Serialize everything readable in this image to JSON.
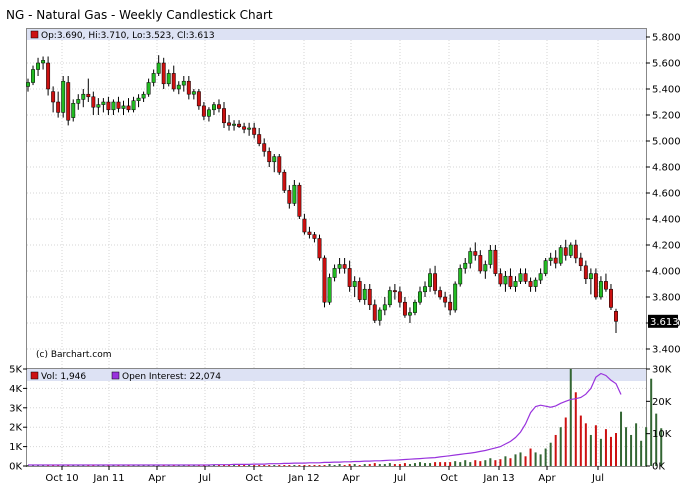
{
  "title": "NG - Natural Gas - Weekly Candlestick Chart",
  "price_legend": "Op:3.690, Hi:3.710, Lo:3.523, Cl:3.613",
  "copyright": "(c) Barchart.com",
  "last_price_label": "3.613",
  "volume_legend": "Vol: 1,946",
  "oi_legend": "Open Interest: 22,074",
  "colors": {
    "up": "#22bb22",
    "down": "#cc1111",
    "oi_line": "#9933dd",
    "legend_bar": "#dde2f4",
    "grid": "#d6d6d6",
    "vol_dark": "#336633"
  },
  "chart_data": [
    {
      "type": "candlestick",
      "name": "price",
      "y_ticks": [
        "3.400",
        "3.600",
        "3.800",
        "4.000",
        "4.200",
        "4.400",
        "4.600",
        "4.800",
        "5.000",
        "5.200",
        "5.400",
        "5.600",
        "5.800"
      ],
      "ylim": [
        3.32,
        5.84
      ],
      "grid": true,
      "x_ticks": [
        "Oct 10",
        "Jan 11",
        "Apr",
        "Jul",
        "Oct",
        "Jan 12",
        "Apr",
        "Jul",
        "Oct",
        "Jan 13",
        "Apr",
        "Jul"
      ],
      "last": {
        "open": 3.69,
        "high": 3.71,
        "low": 3.523,
        "close": 3.613
      },
      "candles": [
        [
          5.42,
          5.48,
          5.38,
          5.45
        ],
        [
          5.45,
          5.58,
          5.43,
          5.55
        ],
        [
          5.55,
          5.64,
          5.5,
          5.6
        ],
        [
          5.6,
          5.65,
          5.55,
          5.62
        ],
        [
          5.6,
          5.65,
          5.35,
          5.4
        ],
        [
          5.38,
          5.42,
          5.22,
          5.3
        ],
        [
          5.3,
          5.38,
          5.18,
          5.22
        ],
        [
          5.22,
          5.5,
          5.18,
          5.46
        ],
        [
          5.45,
          5.5,
          5.12,
          5.16
        ],
        [
          5.18,
          5.32,
          5.15,
          5.29
        ],
        [
          5.29,
          5.36,
          5.24,
          5.32
        ],
        [
          5.32,
          5.4,
          5.26,
          5.36
        ],
        [
          5.36,
          5.48,
          5.3,
          5.34
        ],
        [
          5.34,
          5.38,
          5.2,
          5.26
        ],
        [
          5.26,
          5.33,
          5.2,
          5.28
        ],
        [
          5.28,
          5.33,
          5.22,
          5.3
        ],
        [
          5.3,
          5.34,
          5.2,
          5.24
        ],
        [
          5.24,
          5.32,
          5.2,
          5.3
        ],
        [
          5.3,
          5.34,
          5.22,
          5.25
        ],
        [
          5.25,
          5.31,
          5.2,
          5.27
        ],
        [
          5.27,
          5.33,
          5.22,
          5.24
        ],
        [
          5.24,
          5.34,
          5.22,
          5.31
        ],
        [
          5.31,
          5.36,
          5.26,
          5.33
        ],
        [
          5.33,
          5.38,
          5.3,
          5.36
        ],
        [
          5.36,
          5.48,
          5.34,
          5.45
        ],
        [
          5.45,
          5.55,
          5.42,
          5.52
        ],
        [
          5.52,
          5.66,
          5.5,
          5.6
        ],
        [
          5.6,
          5.64,
          5.4,
          5.44
        ],
        [
          5.44,
          5.55,
          5.42,
          5.52
        ],
        [
          5.52,
          5.58,
          5.38,
          5.4
        ],
        [
          5.4,
          5.46,
          5.36,
          5.43
        ],
        [
          5.43,
          5.5,
          5.38,
          5.46
        ],
        [
          5.46,
          5.5,
          5.32,
          5.36
        ],
        [
          5.36,
          5.4,
          5.32,
          5.38
        ],
        [
          5.38,
          5.4,
          5.24,
          5.27
        ],
        [
          5.27,
          5.3,
          5.16,
          5.19
        ],
        [
          5.19,
          5.26,
          5.15,
          5.24
        ],
        [
          5.24,
          5.3,
          5.2,
          5.28
        ],
        [
          5.28,
          5.32,
          5.22,
          5.25
        ],
        [
          5.25,
          5.3,
          5.1,
          5.14
        ],
        [
          5.14,
          5.2,
          5.08,
          5.12
        ],
        [
          5.12,
          5.16,
          5.08,
          5.13
        ],
        [
          5.13,
          5.16,
          5.1,
          5.11
        ],
        [
          5.11,
          5.14,
          5.06,
          5.09
        ],
        [
          5.09,
          5.14,
          5.04,
          5.1
        ],
        [
          5.1,
          5.14,
          5.02,
          5.05
        ],
        [
          5.05,
          5.1,
          4.96,
          4.98
        ],
        [
          4.98,
          5.02,
          4.88,
          4.92
        ],
        [
          4.92,
          4.95,
          4.8,
          4.84
        ],
        [
          4.84,
          4.9,
          4.76,
          4.88
        ],
        [
          4.88,
          4.9,
          4.74,
          4.76
        ],
        [
          4.76,
          4.78,
          4.6,
          4.62
        ],
        [
          4.62,
          4.66,
          4.48,
          4.52
        ],
        [
          4.52,
          4.7,
          4.5,
          4.66
        ],
        [
          4.66,
          4.68,
          4.4,
          4.42
        ],
        [
          4.4,
          4.44,
          4.28,
          4.3
        ],
        [
          4.3,
          4.34,
          4.25,
          4.28
        ],
        [
          4.28,
          4.3,
          4.22,
          4.25
        ],
        [
          4.25,
          4.28,
          4.08,
          4.1
        ],
        [
          4.1,
          4.12,
          3.72,
          3.76
        ],
        [
          3.76,
          3.98,
          3.74,
          3.95
        ],
        [
          3.95,
          4.05,
          3.92,
          4.02
        ],
        [
          4.02,
          4.1,
          3.98,
          4.05
        ],
        [
          4.05,
          4.1,
          3.98,
          4.02
        ],
        [
          4.02,
          4.08,
          3.84,
          3.88
        ],
        [
          3.88,
          3.96,
          3.8,
          3.92
        ],
        [
          3.92,
          3.95,
          3.76,
          3.78
        ],
        [
          3.78,
          3.9,
          3.74,
          3.86
        ],
        [
          3.86,
          3.9,
          3.7,
          3.74
        ],
        [
          3.74,
          3.78,
          3.6,
          3.62
        ],
        [
          3.62,
          3.72,
          3.58,
          3.7
        ],
        [
          3.7,
          3.8,
          3.66,
          3.74
        ],
        [
          3.74,
          3.88,
          3.72,
          3.85
        ],
        [
          3.85,
          3.9,
          3.78,
          3.84
        ],
        [
          3.84,
          3.88,
          3.72,
          3.76
        ],
        [
          3.76,
          3.8,
          3.64,
          3.66
        ],
        [
          3.66,
          3.72,
          3.6,
          3.68
        ],
        [
          3.68,
          3.78,
          3.66,
          3.76
        ],
        [
          3.76,
          3.88,
          3.74,
          3.84
        ],
        [
          3.84,
          3.92,
          3.8,
          3.88
        ],
        [
          3.88,
          4.02,
          3.84,
          3.98
        ],
        [
          3.98,
          4.04,
          3.82,
          3.85
        ],
        [
          3.85,
          3.88,
          3.78,
          3.8
        ],
        [
          3.8,
          3.84,
          3.72,
          3.76
        ],
        [
          3.76,
          3.82,
          3.66,
          3.7
        ],
        [
          3.7,
          3.92,
          3.68,
          3.9
        ],
        [
          3.9,
          4.05,
          3.88,
          4.02
        ],
        [
          4.02,
          4.1,
          3.98,
          4.06
        ],
        [
          4.06,
          4.18,
          4.02,
          4.15
        ],
        [
          4.15,
          4.22,
          4.08,
          4.12
        ],
        [
          4.12,
          4.16,
          3.98,
          4.0
        ],
        [
          4.0,
          4.08,
          3.94,
          4.05
        ],
        [
          4.05,
          4.2,
          4.02,
          4.16
        ],
        [
          4.16,
          4.2,
          3.96,
          3.98
        ],
        [
          3.98,
          4.02,
          3.88,
          3.9
        ],
        [
          3.9,
          4.0,
          3.84,
          3.96
        ],
        [
          3.96,
          4.02,
          3.86,
          3.88
        ],
        [
          3.88,
          3.96,
          3.84,
          3.92
        ],
        [
          3.92,
          4.02,
          3.9,
          3.98
        ],
        [
          3.98,
          4.02,
          3.9,
          3.92
        ],
        [
          3.92,
          3.95,
          3.84,
          3.88
        ],
        [
          3.88,
          3.95,
          3.84,
          3.93
        ],
        [
          3.93,
          4.02,
          3.9,
          3.98
        ],
        [
          3.98,
          4.1,
          3.96,
          4.08
        ],
        [
          4.08,
          4.14,
          4.04,
          4.1
        ],
        [
          4.1,
          4.16,
          4.02,
          4.06
        ],
        [
          4.06,
          4.2,
          4.04,
          4.18
        ],
        [
          4.18,
          4.24,
          4.08,
          4.12
        ],
        [
          4.12,
          4.22,
          4.1,
          4.2
        ],
        [
          4.2,
          4.24,
          4.06,
          4.1
        ],
        [
          4.1,
          4.14,
          4.0,
          4.04
        ],
        [
          4.04,
          4.08,
          3.9,
          3.94
        ],
        [
          3.94,
          4.02,
          3.82,
          3.98
        ],
        [
          3.98,
          4.02,
          3.78,
          3.8
        ],
        [
          3.8,
          3.96,
          3.78,
          3.92
        ],
        [
          3.92,
          3.98,
          3.84,
          3.86
        ],
        [
          3.86,
          3.9,
          3.7,
          3.72
        ],
        [
          3.69,
          3.71,
          3.523,
          3.613
        ]
      ]
    },
    {
      "type": "bar+line",
      "name": "volume",
      "vol_ticks": [
        "0K",
        "1K",
        "2K",
        "3K",
        "4K",
        "5K"
      ],
      "vol_lim": [
        0,
        5
      ],
      "oi_ticks": [
        "0K",
        "10K",
        "20K",
        "30K"
      ],
      "oi_lim": [
        0,
        30
      ],
      "volume_k": [
        0.05,
        0.05,
        0.05,
        0.05,
        0.05,
        0.05,
        0.05,
        0.05,
        0.05,
        0.05,
        0.05,
        0.05,
        0.05,
        0.05,
        0.05,
        0.05,
        0.05,
        0.05,
        0.05,
        0.05,
        0.05,
        0.05,
        0.05,
        0.05,
        0.05,
        0.05,
        0.05,
        0.05,
        0.05,
        0.05,
        0.05,
        0.05,
        0.05,
        0.05,
        0.05,
        0.05,
        0.05,
        0.05,
        0.05,
        0.05,
        0.05,
        0.05,
        0.05,
        0.05,
        0.05,
        0.05,
        0.05,
        0.05,
        0.05,
        0.05,
        0.05,
        0.05,
        0.05,
        0.05,
        0.05,
        0.05,
        0.05,
        0.05,
        0.05,
        0.05,
        0.1,
        0.05,
        0.1,
        0.05,
        0.1,
        0.1,
        0.05,
        0.1,
        0.1,
        0.15,
        0.1,
        0.1,
        0.15,
        0.1,
        0.1,
        0.15,
        0.1,
        0.15,
        0.2,
        0.15,
        0.15,
        0.2,
        0.2,
        0.2,
        0.2,
        0.25,
        0.2,
        0.3,
        0.2,
        0.3,
        0.25,
        0.3,
        0.4,
        0.3,
        0.35,
        0.5,
        0.4,
        0.6,
        0.7,
        0.5,
        0.9,
        0.7,
        0.6,
        0.9,
        1.2,
        1.6,
        2.0,
        2.5,
        5.0,
        3.8,
        2.6,
        2.2,
        1.6,
        2.1,
        1.4,
        1.9,
        1.5,
        1.7,
        2.8,
        2.0,
        1.6,
        2.2,
        1.3,
        2.0,
        4.5,
        2.7,
        1.946
      ],
      "open_interest_k": [
        0.3,
        0.3,
        0.3,
        0.3,
        0.3,
        0.3,
        0.3,
        0.3,
        0.3,
        0.3,
        0.3,
        0.3,
        0.3,
        0.3,
        0.3,
        0.3,
        0.3,
        0.3,
        0.3,
        0.3,
        0.3,
        0.3,
        0.3,
        0.3,
        0.3,
        0.3,
        0.3,
        0.3,
        0.3,
        0.3,
        0.3,
        0.3,
        0.3,
        0.3,
        0.3,
        0.3,
        0.3,
        0.4,
        0.4,
        0.4,
        0.4,
        0.5,
        0.5,
        0.5,
        0.5,
        0.6,
        0.6,
        0.6,
        0.7,
        0.7,
        0.7,
        0.8,
        0.8,
        0.9,
        0.9,
        0.9,
        1.0,
        1.0,
        1.0,
        1.1,
        1.1,
        1.2,
        1.2,
        1.3,
        1.3,
        1.4,
        1.4,
        1.5,
        1.5,
        1.6,
        1.6,
        1.7,
        1.8,
        1.8,
        1.9,
        2.0,
        2.1,
        2.2,
        2.3,
        2.4,
        2.5,
        2.6,
        2.8,
        3.0,
        3.2,
        3.4,
        3.6,
        3.8,
        4.0,
        4.2,
        4.5,
        4.8,
        5.2,
        5.6,
        6.0,
        6.8,
        7.6,
        8.8,
        10.5,
        13.0,
        16.5,
        18.4,
        18.8,
        18.5,
        18.2,
        18.6,
        19.4,
        20.0,
        20.6,
        20.8,
        21.2,
        22.2,
        24.0,
        27.5,
        28.6,
        28.0,
        26.5,
        25.5,
        22.1
      ],
      "legend": "top-left"
    }
  ]
}
